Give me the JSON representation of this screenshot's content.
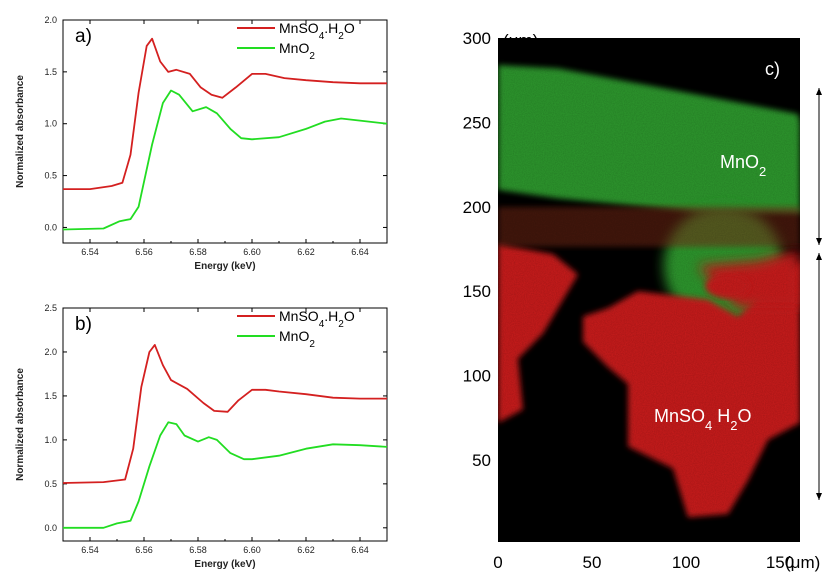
{
  "chart_data": [
    {
      "type": "line",
      "panel_label": "a)",
      "xlabel": "Energy (keV)",
      "ylabel": "Normalized absorbance",
      "xlim": [
        6.53,
        6.65
      ],
      "ylim": [
        -0.15,
        2.0
      ],
      "xticks": [
        "6.54",
        "6.56",
        "6.58",
        "6.60",
        "6.62",
        "6.64"
      ],
      "yticks": [
        "0.0",
        "0.5",
        "1.0",
        "1.5",
        "2.0"
      ],
      "legend_position": "top-right",
      "series": [
        {
          "name": "MnSO4.H2O",
          "color": "#d42020",
          "x": [
            6.53,
            6.54,
            6.548,
            6.552,
            6.555,
            6.558,
            6.561,
            6.563,
            6.566,
            6.569,
            6.572,
            6.577,
            6.581,
            6.585,
            6.589,
            6.594,
            6.6,
            6.605,
            6.612,
            6.62,
            6.63,
            6.64,
            6.65
          ],
          "y": [
            0.37,
            0.37,
            0.4,
            0.43,
            0.7,
            1.3,
            1.75,
            1.82,
            1.6,
            1.5,
            1.52,
            1.48,
            1.35,
            1.28,
            1.25,
            1.35,
            1.48,
            1.48,
            1.44,
            1.42,
            1.4,
            1.39,
            1.39
          ]
        },
        {
          "name": "MnO2",
          "color": "#22dd22",
          "x": [
            6.53,
            6.545,
            6.551,
            6.555,
            6.558,
            6.563,
            6.567,
            6.57,
            6.573,
            6.578,
            6.583,
            6.587,
            6.592,
            6.596,
            6.6,
            6.61,
            6.62,
            6.627,
            6.633,
            6.64,
            6.65
          ],
          "y": [
            -0.02,
            -0.01,
            0.06,
            0.08,
            0.2,
            0.8,
            1.2,
            1.32,
            1.28,
            1.12,
            1.16,
            1.1,
            0.95,
            0.86,
            0.85,
            0.87,
            0.95,
            1.02,
            1.05,
            1.03,
            1.0
          ]
        }
      ]
    },
    {
      "type": "line",
      "panel_label": "b)",
      "xlabel": "Energy (keV)",
      "ylabel": "Normalized absorbance",
      "xlim": [
        6.53,
        6.65
      ],
      "ylim": [
        -0.15,
        2.5
      ],
      "xticks": [
        "6.54",
        "6.56",
        "6.58",
        "6.60",
        "6.62",
        "6.64"
      ],
      "yticks": [
        "0.0",
        "0.5",
        "1.0",
        "1.5",
        "2.0",
        "2.5"
      ],
      "legend_position": "top-right",
      "series": [
        {
          "name": "MnSO4.H2O",
          "color": "#d42020",
          "x": [
            6.53,
            6.545,
            6.553,
            6.556,
            6.559,
            6.562,
            6.564,
            6.567,
            6.57,
            6.576,
            6.582,
            6.586,
            6.591,
            6.595,
            6.6,
            6.605,
            6.61,
            6.62,
            6.63,
            6.64,
            6.65
          ],
          "y": [
            0.51,
            0.52,
            0.55,
            0.9,
            1.6,
            2.0,
            2.08,
            1.85,
            1.68,
            1.58,
            1.42,
            1.33,
            1.32,
            1.45,
            1.57,
            1.57,
            1.55,
            1.52,
            1.48,
            1.47,
            1.47
          ]
        },
        {
          "name": "MnO2",
          "color": "#22dd22",
          "x": [
            6.53,
            6.545,
            6.55,
            6.555,
            6.558,
            6.562,
            6.566,
            6.569,
            6.572,
            6.575,
            6.58,
            6.584,
            6.587,
            6.592,
            6.597,
            6.6,
            6.61,
            6.62,
            6.63,
            6.64,
            6.65
          ],
          "y": [
            0.0,
            0.0,
            0.05,
            0.08,
            0.3,
            0.7,
            1.05,
            1.2,
            1.18,
            1.05,
            0.98,
            1.03,
            1.0,
            0.85,
            0.78,
            0.78,
            0.82,
            0.9,
            0.95,
            0.94,
            0.92
          ]
        }
      ]
    },
    {
      "type": "heatmap",
      "panel_label": "c)",
      "xunit": "(μm)",
      "yunit": "(μm)",
      "xticks": [
        "0",
        "50",
        "100",
        "150"
      ],
      "yticks": [
        "300",
        "250",
        "200",
        "150",
        "100",
        "50"
      ],
      "xlim": [
        0,
        165
      ],
      "ylim": [
        10,
        300
      ],
      "regions": [
        {
          "name": "MnO2",
          "color": "#2e9a2e"
        },
        {
          "name": "MnSO4 H2O",
          "color": "#cc1b1b"
        }
      ]
    }
  ]
}
